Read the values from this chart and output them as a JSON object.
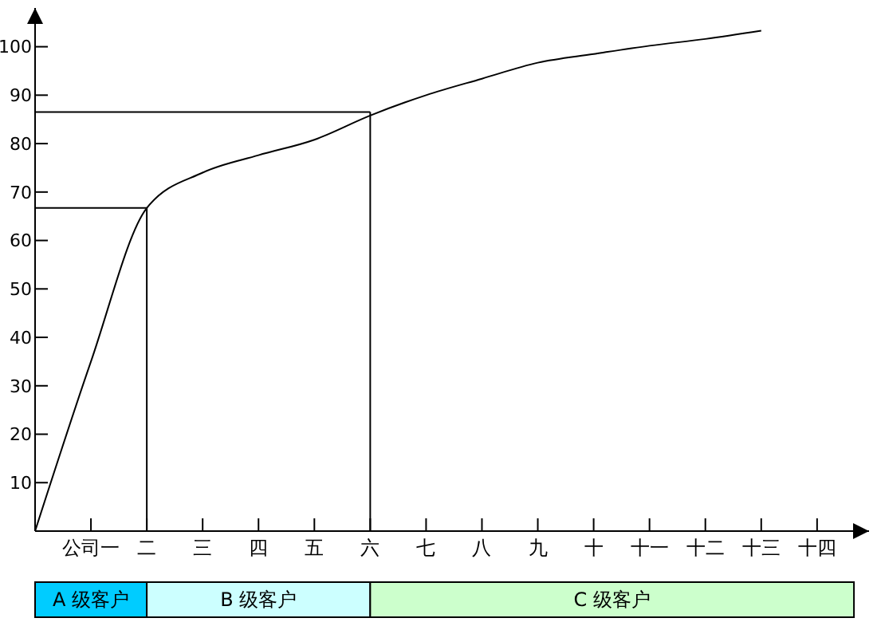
{
  "chart_data": {
    "type": "line",
    "categories": [
      null,
      "公司一",
      "二",
      "三",
      "四",
      "五",
      "六",
      "七",
      "八",
      "九",
      "十",
      "十一",
      "十二",
      "十三",
      "十四"
    ],
    "series": [
      {
        "color": "#000000",
        "values": [
          0,
          35,
          66.7,
          74,
          77.6,
          80.8,
          85.8,
          90,
          93.4,
          96.7,
          98.5,
          100.2,
          101.6,
          103.3,
          null
        ]
      }
    ],
    "ylim": [
      0,
      108
    ],
    "yticks": [
      10,
      20,
      30,
      40,
      50,
      60,
      70,
      80,
      90,
      100
    ],
    "ref_lines": [
      {
        "axis": "y",
        "value": 66.7,
        "color": "#000000"
      },
      {
        "axis": "x",
        "value": "二",
        "color": "#000000"
      },
      {
        "axis": "y",
        "value": 86.5,
        "color": "#000000"
      },
      {
        "axis": "x",
        "value": "六",
        "color": "#000000"
      }
    ],
    "annotations": [
      "A 级客户",
      "B 级客户",
      "C 级客户"
    ],
    "grid": false,
    "legend": false,
    "marker": "none",
    "line_style": "solid"
  }
}
